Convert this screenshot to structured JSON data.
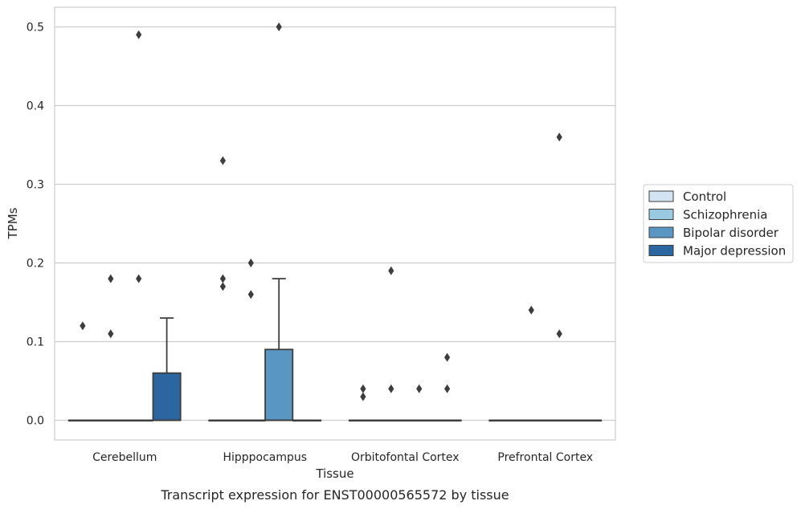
{
  "chart_data": {
    "type": "box",
    "xlabel": "Tissue",
    "ylabel": "TPMs",
    "caption": "Transcript expression for ENST00000565572 by tissue",
    "ylim": [
      -0.025,
      0.525
    ],
    "yticks": [
      0.0,
      0.1,
      0.2,
      0.3,
      0.4,
      0.5
    ],
    "ytick_labels": [
      "0.0",
      "0.1",
      "0.2",
      "0.3",
      "0.4",
      "0.5"
    ],
    "grid": "horizontal",
    "legend_position": "right",
    "categories": [
      "Cerebellum",
      "Hipppocampus",
      "Orbitofontal Cortex",
      "Prefrontal Cortex"
    ],
    "series": [
      {
        "name": "Control",
        "color": "#d4e3f2",
        "boxes": [
          {
            "q1": 0,
            "median": 0,
            "q3": 0,
            "whisker_low": 0,
            "whisker_high": 0,
            "outliers": [
              0.12
            ]
          },
          {
            "q1": 0,
            "median": 0,
            "q3": 0,
            "whisker_low": 0,
            "whisker_high": 0,
            "outliers": [
              0.33,
              0.18,
              0.17
            ]
          },
          {
            "q1": 0,
            "median": 0,
            "q3": 0,
            "whisker_low": 0,
            "whisker_high": 0,
            "outliers": [
              0.04,
              0.03
            ]
          },
          {
            "q1": 0,
            "median": 0,
            "q3": 0,
            "whisker_low": 0,
            "whisker_high": 0,
            "outliers": []
          }
        ]
      },
      {
        "name": "Schizophrenia",
        "color": "#9ac8e0",
        "boxes": [
          {
            "q1": 0,
            "median": 0,
            "q3": 0,
            "whisker_low": 0,
            "whisker_high": 0,
            "outliers": [
              0.18,
              0.11
            ]
          },
          {
            "q1": 0,
            "median": 0,
            "q3": 0,
            "whisker_low": 0,
            "whisker_high": 0,
            "outliers": [
              0.2,
              0.16
            ]
          },
          {
            "q1": 0,
            "median": 0,
            "q3": 0,
            "whisker_low": 0,
            "whisker_high": 0,
            "outliers": [
              0.19,
              0.04
            ]
          },
          {
            "q1": 0,
            "median": 0,
            "q3": 0,
            "whisker_low": 0,
            "whisker_high": 0,
            "outliers": [
              0.14
            ]
          }
        ]
      },
      {
        "name": "Bipolar disorder",
        "color": "#5a96c3",
        "boxes": [
          {
            "q1": 0,
            "median": 0,
            "q3": 0,
            "whisker_low": 0,
            "whisker_high": 0,
            "outliers": [
              0.49,
              0.18
            ]
          },
          {
            "q1": 0,
            "median": 0,
            "q3": 0.09,
            "whisker_low": 0,
            "whisker_high": 0.18,
            "outliers": [
              0.5
            ]
          },
          {
            "q1": 0,
            "median": 0,
            "q3": 0,
            "whisker_low": 0,
            "whisker_high": 0,
            "outliers": [
              0.04
            ]
          },
          {
            "q1": 0,
            "median": 0,
            "q3": 0,
            "whisker_low": 0,
            "whisker_high": 0,
            "outliers": [
              0.36,
              0.11
            ]
          }
        ]
      },
      {
        "name": "Major depression",
        "color": "#2c66a1",
        "boxes": [
          {
            "q1": 0,
            "median": 0,
            "q3": 0.06,
            "whisker_low": 0,
            "whisker_high": 0.13,
            "outliers": []
          },
          {
            "q1": 0,
            "median": 0,
            "q3": 0,
            "whisker_low": 0,
            "whisker_high": 0,
            "outliers": []
          },
          {
            "q1": 0,
            "median": 0,
            "q3": 0,
            "whisker_low": 0,
            "whisker_high": 0,
            "outliers": [
              0.08,
              0.04
            ]
          },
          {
            "q1": 0,
            "median": 0,
            "q3": 0,
            "whisker_low": 0,
            "whisker_high": 0,
            "outliers": []
          }
        ]
      }
    ]
  }
}
